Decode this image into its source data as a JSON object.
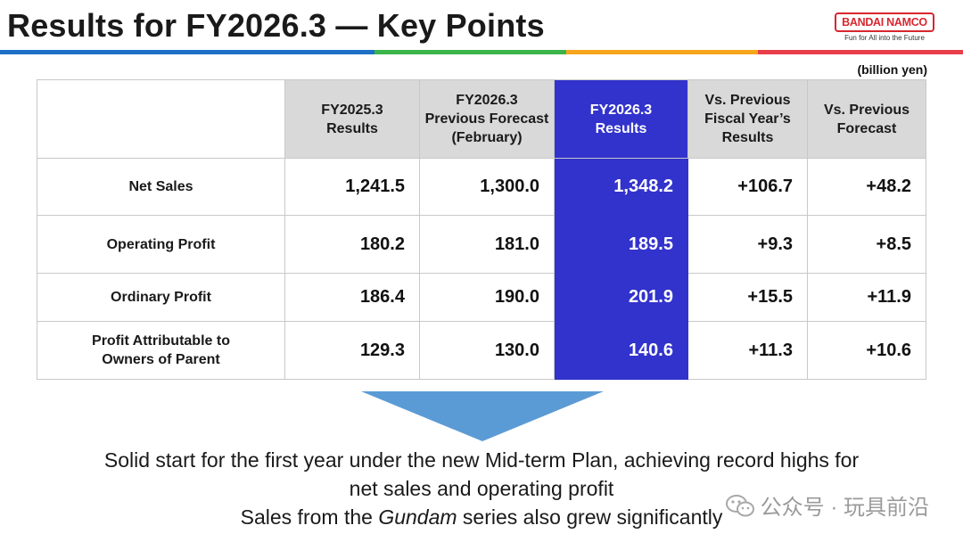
{
  "header": {
    "title": "Results for FY2026.3 — Key Points",
    "logo_text": "BANDAI NAMCO",
    "logo_tagline": "Fun for All into the Future",
    "brand_colors": [
      "#d8262e",
      "#1e6fc6",
      "#3bb54a",
      "#f7a51c",
      "#e83e4a"
    ]
  },
  "unit": "(billion yen)",
  "table": {
    "columns": [
      [
        "FY2025.3",
        "Results"
      ],
      [
        "FY2026.3",
        "Previous Forecast",
        "(February)"
      ],
      [
        "FY2026.3",
        "Results"
      ],
      [
        "Vs. Previous",
        "Fiscal Year’s",
        "Results"
      ],
      [
        "Vs. Previous",
        "Forecast"
      ]
    ],
    "highlight_color": "#3232cc",
    "rows": [
      {
        "label": [
          "Net Sales"
        ],
        "values": [
          "1,241.5",
          "1,300.0",
          "1,348.2",
          "+106.7",
          "+48.2"
        ]
      },
      {
        "label": [
          "Operating Profit"
        ],
        "values": [
          "180.2",
          "181.0",
          "189.5",
          "+9.3",
          "+8.5"
        ]
      },
      {
        "label": [
          "Ordinary Profit"
        ],
        "values": [
          "186.4",
          "190.0",
          "201.9",
          "+15.5",
          "+11.9"
        ]
      },
      {
        "label": [
          "Profit Attributable to",
          "Owners of Parent"
        ],
        "values": [
          "129.3",
          "130.0",
          "140.6",
          "+11.3",
          "+10.6"
        ]
      }
    ]
  },
  "summary": {
    "line1": "Solid start for the first year under the new Mid-term Plan, achieving record highs for",
    "line2": "net sales and operating profit",
    "line3_pre": "Sales from the ",
    "line3_italic": "Gundam",
    "line3_post": " series also grew significantly"
  },
  "watermark": {
    "text": "公众号 · 玩具前沿",
    "icon": "wechat-icon"
  }
}
